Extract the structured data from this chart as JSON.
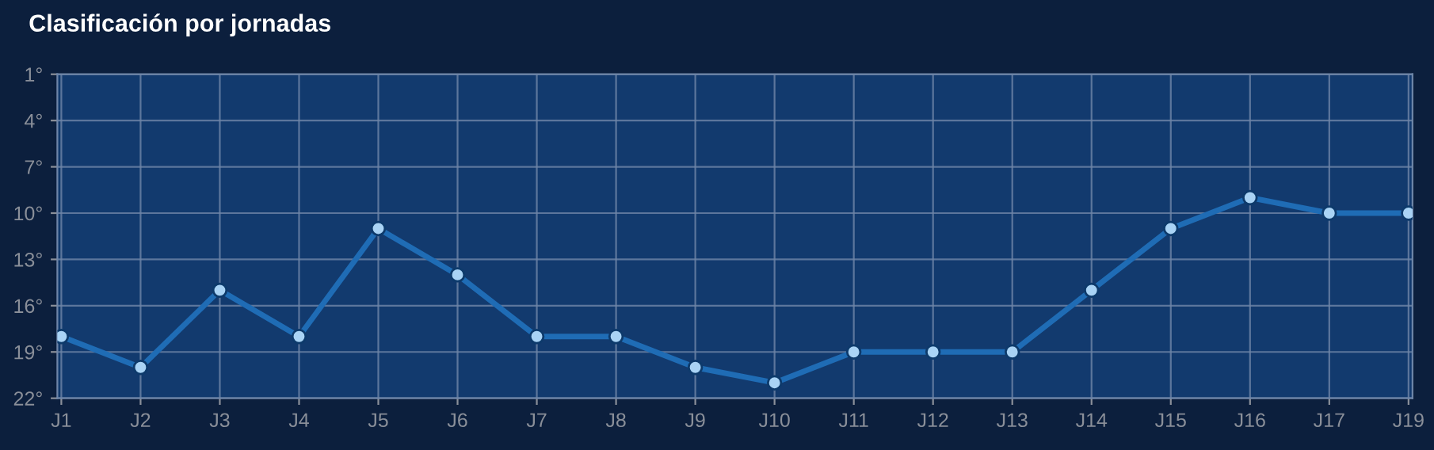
{
  "chart_data": {
    "type": "line",
    "title": "Clasificación por jornadas",
    "categories": [
      "J1",
      "J2",
      "J3",
      "J4",
      "J5",
      "J6",
      "J7",
      "J8",
      "J9",
      "J10",
      "J11",
      "J12",
      "J13",
      "J14",
      "J15",
      "J16",
      "J17",
      "J19"
    ],
    "series": [
      {
        "color": "#1f6cb5",
        "values": [
          18,
          20,
          15,
          18,
          11,
          14,
          18,
          18,
          20,
          21,
          19,
          19,
          19,
          15,
          11,
          9,
          10,
          10
        ]
      }
    ],
    "ylim": [
      22,
      1
    ],
    "yticks": [
      {
        "value": 1,
        "label": "1°"
      },
      {
        "value": 4,
        "label": "4°"
      },
      {
        "value": 7,
        "label": "7°"
      },
      {
        "value": 10,
        "label": "10°"
      },
      {
        "value": 13,
        "label": "13°"
      },
      {
        "value": 16,
        "label": "16°"
      },
      {
        "value": 19,
        "label": "19°"
      },
      {
        "value": 22,
        "label": "22°"
      }
    ],
    "grid": true,
    "marker": "circle",
    "line_style": "solid",
    "legend": false
  }
}
